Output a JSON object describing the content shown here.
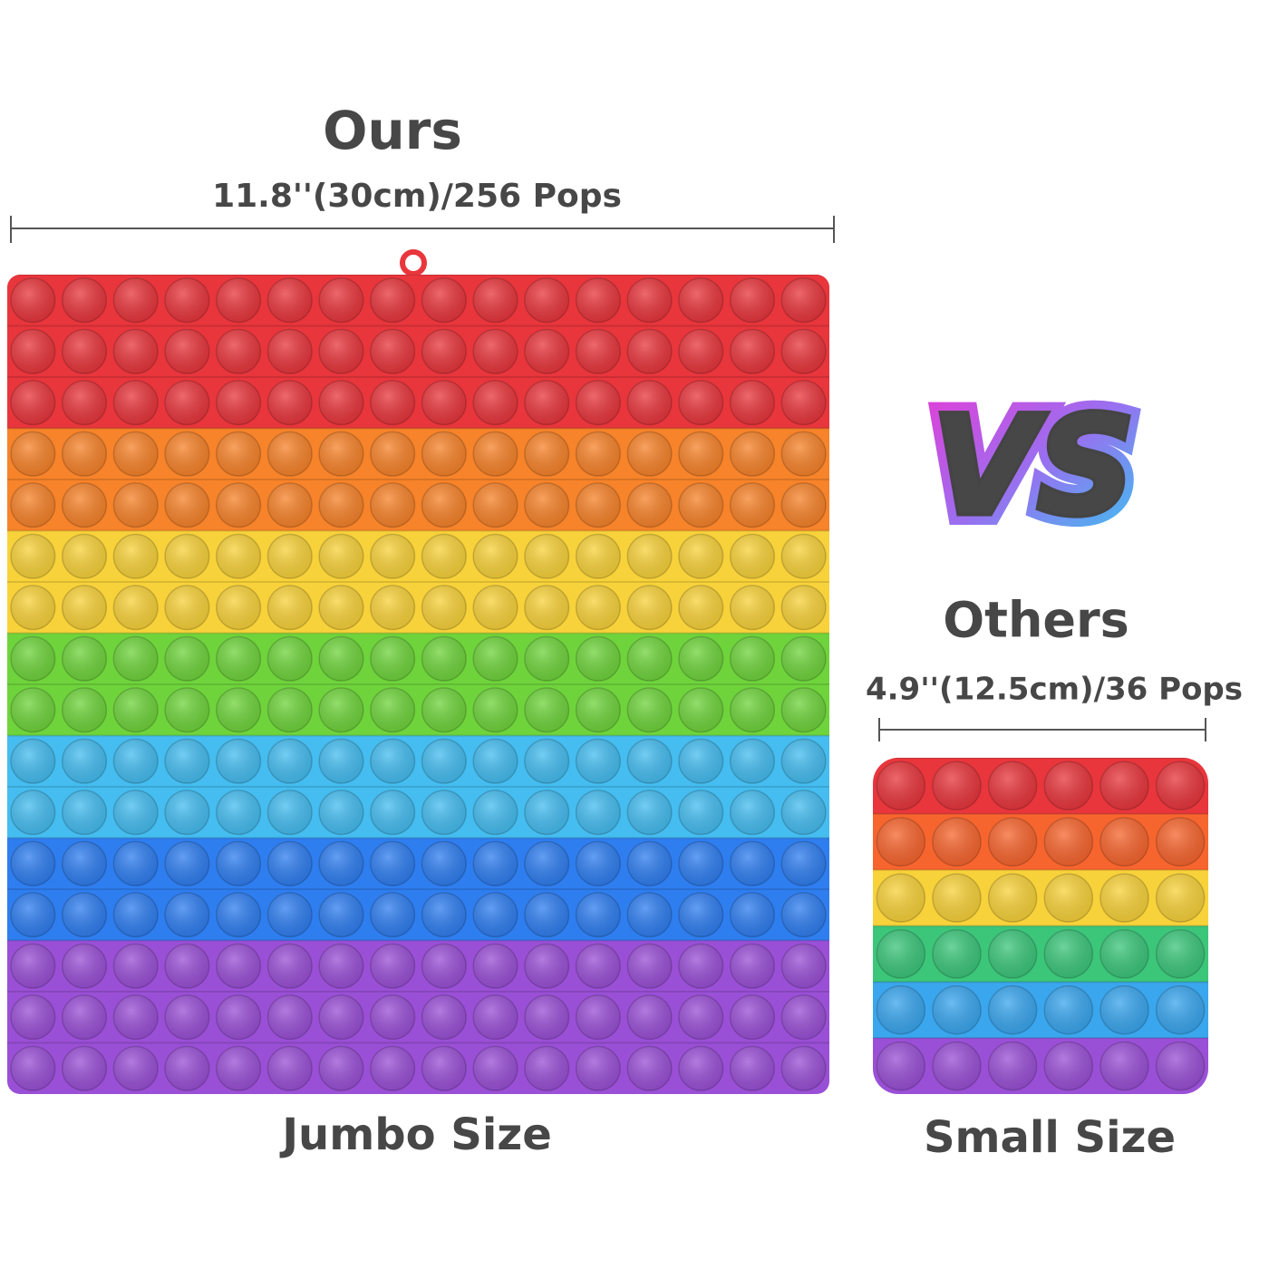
{
  "left": {
    "title": "Ours",
    "size": "11.8''(30cm)/256 Pops",
    "caption": "Jumbo Size"
  },
  "vs": "VS",
  "right": {
    "title": "Others",
    "size": "4.9''(12.5cm)/36 Pops",
    "caption": "Small Size"
  }
}
